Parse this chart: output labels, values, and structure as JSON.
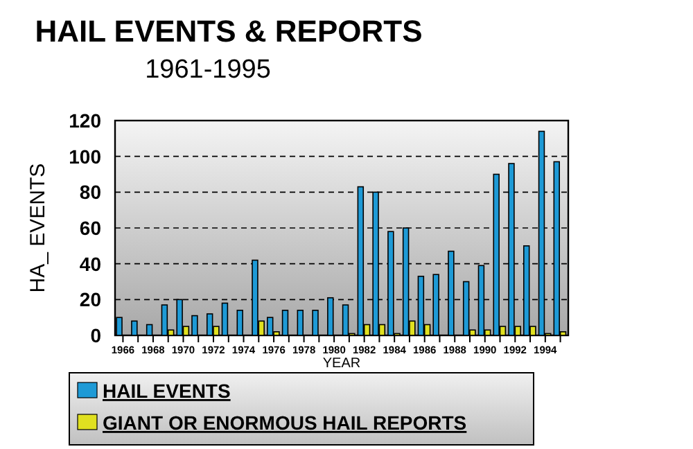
{
  "chart_data": {
    "type": "bar",
    "title": "HAIL EVENTS & REPORTS",
    "subtitle": "1961-1995",
    "xlabel": "YEAR",
    "ylabel": "HA_ EVENTS",
    "categories": [
      "1966",
      null,
      "1968",
      null,
      "1970",
      null,
      "1972",
      null,
      "1974",
      null,
      "1976",
      null,
      "1978",
      null,
      "1980",
      null,
      "1982",
      null,
      "1984",
      null,
      "1986",
      null,
      "1988",
      null,
      "1990",
      null,
      "1992",
      null,
      "1994",
      null
    ],
    "series": [
      {
        "name": "HAIL EVENTS",
        "color": "#1e9ad6",
        "values": [
          10,
          8,
          6,
          17,
          20,
          11,
          12,
          18,
          14,
          42,
          10,
          14,
          14,
          14,
          21,
          17,
          83,
          80,
          58,
          60,
          33,
          34,
          47,
          30,
          39,
          90,
          96,
          50,
          114,
          97
        ]
      },
      {
        "name": "GIANT OR ENORMOUS HAIL REPORTS",
        "color": "#e0e020",
        "values": [
          0,
          0,
          0,
          3,
          5,
          0,
          5,
          0,
          0,
          8,
          2,
          0,
          0,
          0,
          0,
          1,
          6,
          6,
          1,
          8,
          6,
          0,
          0,
          3,
          3,
          5,
          5,
          5,
          1,
          2
        ]
      }
    ],
    "ylim": [
      0,
      120
    ],
    "yticks": [
      0,
      20,
      40,
      60,
      80,
      100,
      120
    ],
    "grid": "y",
    "legend": "bottom left"
  }
}
